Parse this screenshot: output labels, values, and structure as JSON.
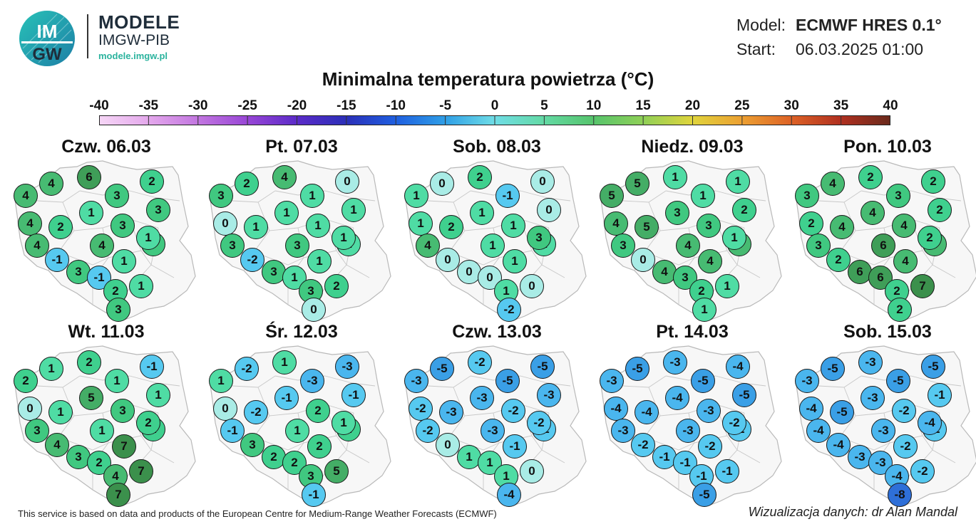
{
  "brand": {
    "title": "MODELE",
    "subtitle": "IMGW-PIB",
    "url": "modele.imgw.pl",
    "logo_text_top": "IM",
    "logo_text_bottom": "GW"
  },
  "meta": {
    "model_label": "Model:",
    "model_value": "ECMWF HRES 0.1°",
    "start_label": "Start:",
    "start_value": "06.03.2025 01:00"
  },
  "title": "Minimalna temperatura powietrza (°C)",
  "scale": {
    "ticks": [
      "-40",
      "-35",
      "-30",
      "-25",
      "-20",
      "-15",
      "-10",
      "-5",
      "0",
      "5",
      "10",
      "15",
      "20",
      "25",
      "30",
      "35",
      "40"
    ],
    "colors": [
      "#f6d6f6",
      "#e4a8ec",
      "#c276e0",
      "#9846d6",
      "#5b2bc8",
      "#2b2fb8",
      "#1f5fe0",
      "#2f9fe6",
      "#6fdde6",
      "#63d9a4",
      "#56c46c",
      "#8fd057",
      "#e0d43c",
      "#eca032",
      "#dd6226",
      "#b03020",
      "#6a2a1c"
    ]
  },
  "panels": [
    {
      "title": "Czw. 06.03",
      "values": [
        4,
        6,
        2,
        4,
        3,
        3,
        4,
        1,
        2,
        3,
        4,
        4,
        3,
        -1,
        1,
        3,
        -1,
        2,
        1,
        3,
        1
      ]
    },
    {
      "title": "Pt. 07.03",
      "values": [
        2,
        4,
        0,
        3,
        1,
        1,
        0,
        1,
        1,
        1,
        3,
        3,
        1,
        -2,
        1,
        3,
        1,
        3,
        2,
        0,
        1
      ]
    },
    {
      "title": "Sob. 08.03",
      "values": [
        0,
        2,
        0,
        1,
        -1,
        0,
        1,
        1,
        2,
        1,
        4,
        1,
        1,
        0,
        1,
        0,
        0,
        1,
        0,
        -2,
        3
      ]
    },
    {
      "title": "Niedz. 09.03",
      "values": [
        5,
        1,
        1,
        5,
        1,
        2,
        4,
        3,
        5,
        3,
        3,
        4,
        4,
        0,
        4,
        4,
        3,
        2,
        1,
        1,
        1
      ]
    },
    {
      "title": "Pon. 10.03",
      "values": [
        4,
        2,
        2,
        3,
        3,
        2,
        2,
        4,
        4,
        4,
        3,
        6,
        4,
        2,
        4,
        6,
        6,
        2,
        7,
        2,
        2
      ]
    },
    {
      "title": "Wt. 11.03",
      "values": [
        1,
        2,
        -1,
        2,
        1,
        1,
        0,
        5,
        1,
        3,
        3,
        1,
        2,
        4,
        7,
        3,
        2,
        4,
        7,
        7,
        2
      ]
    },
    {
      "title": "Śr. 12.03",
      "values": [
        -2,
        1,
        -3,
        1,
        -3,
        -1,
        0,
        -1,
        -2,
        2,
        -1,
        1,
        2,
        3,
        2,
        2,
        2,
        3,
        5,
        -1,
        1
      ]
    },
    {
      "title": "Czw. 13.03",
      "values": [
        -5,
        -2,
        -5,
        -3,
        -5,
        -3,
        -2,
        -3,
        -3,
        -2,
        -2,
        -3,
        -1,
        0,
        -1,
        1,
        1,
        1,
        0,
        -4,
        -2
      ]
    },
    {
      "title": "Pt. 14.03",
      "values": [
        -5,
        -3,
        -4,
        -3,
        -5,
        -5,
        -4,
        -4,
        -4,
        -3,
        -3,
        -3,
        -2,
        -2,
        -2,
        -1,
        -1,
        -1,
        -1,
        -5,
        -2
      ]
    },
    {
      "title": "Sob. 15.03",
      "values": [
        -5,
        -3,
        -5,
        -3,
        -5,
        -1,
        -4,
        -3,
        -5,
        -2,
        -4,
        -3,
        -2,
        -4,
        -2,
        -3,
        -3,
        -4,
        -2,
        -8,
        -4
      ]
    }
  ],
  "footer": {
    "left": "This service is based on data and products of the European Centre for Medium-Range Weather Forecasts (ECMWF)",
    "right": "Wizualizacja danych: dr Alan Mandal"
  }
}
